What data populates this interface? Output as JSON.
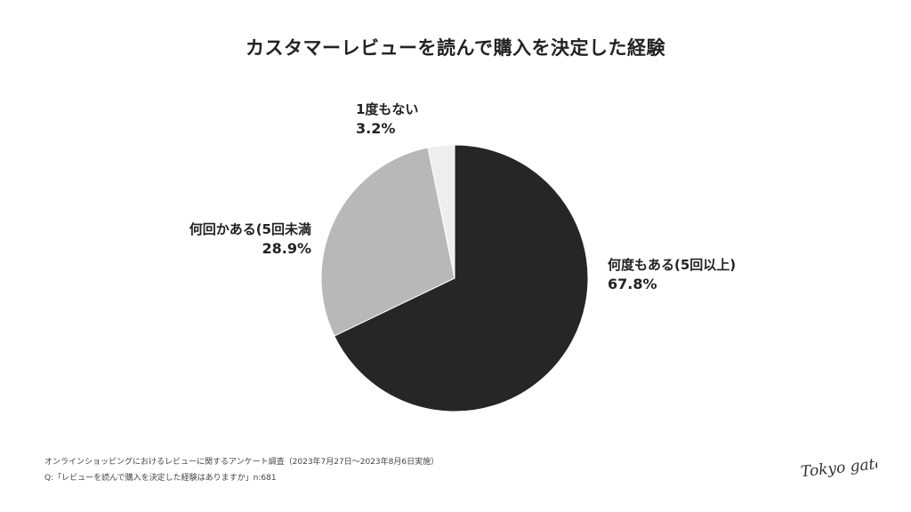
{
  "chart_data": {
    "type": "pie",
    "title": "カスタマーレビューを読んで購入を決定した経験",
    "slices": [
      {
        "label": "何度もある(5回以上)",
        "value": 67.8,
        "value_label": "67.8%",
        "color": "#262626"
      },
      {
        "label": "何回かある(5回未満",
        "value": 28.9,
        "value_label": "28.9%",
        "color": "#b8b8b8"
      },
      {
        "label": "1度もない",
        "value": 3.2,
        "value_label": "3.2%",
        "color": "#eeeeee"
      }
    ],
    "start": "12 o'clock",
    "direction": "clockwise"
  },
  "footer": {
    "survey": "オンラインショッピングにおけるレビューに関するアンケート調査（2023年7月27日〜2023年8月6日実施）",
    "question": "Q:「レビューを読んで購入を決定した経験はありますか」n:681"
  },
  "logo": {
    "text": "Tokyo gate",
    "icon": "tokyo-gate-script-logo"
  }
}
